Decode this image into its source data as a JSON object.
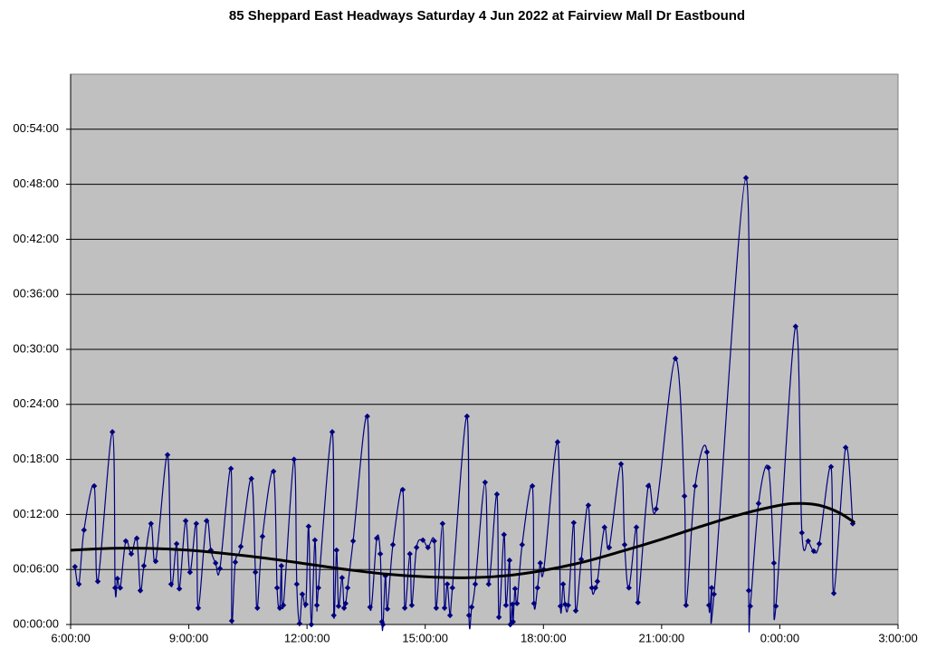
{
  "chart_data": {
    "type": "line",
    "title": "85 Sheppard East Headways Saturday 4 Jun 2022 at Fairview Mall Dr Eastbound",
    "xlim": [
      6,
      27
    ],
    "xticks": [
      {
        "value": 6,
        "label": "6:00:00"
      },
      {
        "value": 9,
        "label": "9:00:00"
      },
      {
        "value": 12,
        "label": "12:00:00"
      },
      {
        "value": 15,
        "label": "15:00:00"
      },
      {
        "value": 18,
        "label": "18:00:00"
      },
      {
        "value": 21,
        "label": "21:00:00"
      },
      {
        "value": 24,
        "label": "0:00:00"
      },
      {
        "value": 27,
        "label": "3:00:00"
      }
    ],
    "ylim": [
      0,
      60
    ],
    "yticks": [
      {
        "value": 0,
        "label": "00:00:00"
      },
      {
        "value": 6,
        "label": "00:06:00"
      },
      {
        "value": 12,
        "label": "00:12:00"
      },
      {
        "value": 18,
        "label": "00:18:00"
      },
      {
        "value": 24,
        "label": "00:24:00"
      },
      {
        "value": 30,
        "label": "00:30:00"
      },
      {
        "value": 36,
        "label": "00:36:00"
      },
      {
        "value": 42,
        "label": "00:42:00"
      },
      {
        "value": 48,
        "label": "00:48:00"
      },
      {
        "value": 54,
        "label": "00:54:00"
      }
    ],
    "grid": true,
    "series": [
      {
        "color": "#000080",
        "markers": true,
        "x": [
          6.11,
          6.21,
          6.34,
          6.6,
          6.69,
          7.06,
          7.13,
          7.19,
          7.26,
          7.4,
          7.54,
          7.68,
          7.77,
          7.86,
          8.04,
          8.16,
          8.46,
          8.55,
          8.69,
          8.76,
          8.92,
          9.03,
          9.19,
          9.24,
          9.45,
          9.56,
          9.68,
          9.79,
          10.07,
          10.09,
          10.18,
          10.32,
          10.59,
          10.69,
          10.74,
          10.87,
          11.15,
          11.24,
          11.31,
          11.35,
          11.4,
          11.67,
          11.74,
          11.81,
          11.88,
          11.97,
          12.04,
          12.11,
          12.2,
          12.25,
          12.29,
          12.64,
          12.68,
          12.75,
          12.8,
          12.89,
          12.94,
          12.98,
          13.03,
          13.17,
          13.53,
          13.6,
          13.77,
          13.86,
          13.9,
          13.93,
          13.99,
          14.04,
          14.18,
          14.43,
          14.48,
          14.61,
          14.66,
          14.78,
          14.94,
          15.07,
          15.23,
          15.28,
          15.44,
          15.49,
          15.56,
          15.63,
          15.69,
          16.06,
          16.11,
          16.18,
          16.27,
          16.52,
          16.61,
          16.82,
          16.87,
          17.0,
          17.05,
          17.14,
          17.16,
          17.21,
          17.23,
          17.28,
          17.33,
          17.46,
          17.72,
          17.76,
          17.85,
          17.92,
          18.01,
          18.36,
          18.43,
          18.5,
          18.55,
          18.63,
          18.77,
          18.82,
          18.96,
          19.14,
          19.23,
          19.32,
          19.37,
          19.55,
          19.67,
          19.97,
          20.06,
          20.17,
          20.36,
          20.4,
          20.66,
          20.86,
          21.35,
          21.58,
          21.62,
          21.85,
          22.15,
          22.2,
          22.27,
          22.33,
          23.14,
          23.21,
          23.25,
          23.46,
          23.71,
          23.85,
          23.9,
          24.4,
          24.56,
          24.72,
          24.86,
          25.0,
          25.3,
          25.37,
          25.67,
          25.85
        ],
        "values": [
          6.3,
          4.4,
          10.3,
          15.1,
          4.7,
          21.0,
          4.0,
          5.0,
          4.0,
          9.1,
          7.7,
          9.4,
          3.7,
          6.4,
          11.0,
          6.9,
          18.5,
          4.4,
          8.8,
          3.9,
          11.3,
          5.7,
          11.0,
          1.8,
          11.3,
          8.1,
          6.7,
          6.1,
          17.0,
          0.4,
          6.8,
          8.5,
          15.9,
          5.7,
          1.8,
          9.6,
          16.7,
          4.0,
          1.8,
          6.4,
          2.1,
          18.0,
          4.4,
          0.1,
          3.3,
          2.2,
          10.7,
          0.0,
          9.2,
          2.1,
          4.0,
          21.0,
          1.0,
          8.1,
          2.0,
          5.1,
          1.8,
          2.3,
          4.0,
          9.1,
          22.7,
          1.9,
          9.4,
          7.7,
          0.3,
          0.0,
          5.3,
          1.7,
          8.7,
          14.7,
          1.8,
          7.7,
          2.1,
          8.4,
          9.2,
          8.4,
          9.1,
          1.8,
          11.0,
          1.8,
          4.4,
          1.0,
          4.0,
          22.7,
          1.0,
          1.9,
          4.4,
          15.5,
          4.4,
          14.2,
          0.8,
          9.8,
          2.1,
          7.0,
          0.0,
          2.2,
          0.3,
          3.9,
          2.3,
          8.7,
          15.1,
          2.3,
          4.0,
          6.7,
          6.0,
          19.9,
          2.0,
          4.4,
          2.2,
          2.1,
          11.1,
          1.5,
          7.1,
          13.0,
          4.0,
          4.0,
          4.7,
          10.6,
          8.4,
          17.5,
          8.7,
          4.0,
          10.6,
          2.4,
          15.1,
          12.6,
          29.0,
          14.0,
          2.1,
          15.1,
          18.8,
          2.1,
          4.0,
          3.3,
          48.7,
          3.7,
          2.0,
          13.2,
          17.1,
          6.7,
          2.0,
          32.5,
          10.0,
          9.1,
          8.0,
          8.8,
          17.2,
          3.4,
          19.3,
          11.0
        ]
      },
      {
        "color": "#000000",
        "markers": false,
        "x": [
          6,
          7,
          8,
          9,
          10,
          11,
          12,
          13,
          14,
          15,
          16,
          17,
          18,
          19,
          20,
          21,
          22,
          23,
          24,
          24.5,
          25,
          25.5,
          25.9
        ],
        "values": [
          8.1,
          8.3,
          8.3,
          8.1,
          7.7,
          7.2,
          6.6,
          6.0,
          5.5,
          5.2,
          5.1,
          5.3,
          5.9,
          6.8,
          8.0,
          9.3,
          10.7,
          12.0,
          13.0,
          13.2,
          13.0,
          12.2,
          11.1
        ]
      }
    ]
  }
}
